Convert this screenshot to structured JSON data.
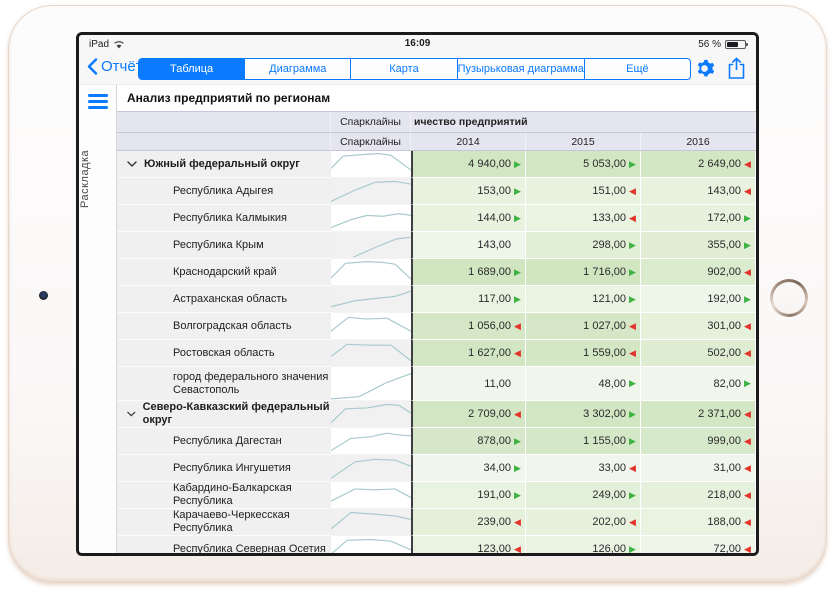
{
  "status_bar": {
    "carrier": "iPad",
    "time": "16:09",
    "battery_percent": "56 %"
  },
  "nav": {
    "back_label": "Отчёты",
    "tabs": [
      {
        "label": "Таблица",
        "selected": true
      },
      {
        "label": "Диаграмма",
        "selected": false
      },
      {
        "label": "Карта",
        "selected": false
      },
      {
        "label": "Пузырьковая диаграмма",
        "selected": false
      },
      {
        "label": "Ещё",
        "selected": false
      }
    ],
    "icons": [
      "settings-gear",
      "share"
    ]
  },
  "sidebar": {
    "layout_label": "Раскладка"
  },
  "report": {
    "title": "Анализ предприятий по регионам"
  },
  "colors": {
    "accent_blue": "#0a7aff",
    "arrow_up_green": "#3fb244",
    "arrow_down_red": "#e2342b",
    "sparkline": "#a9c9ce",
    "header_bg": "#e5e5f0"
  },
  "table": {
    "sparkline_header": "Спарклайны",
    "measure_header": "ичество предприятий",
    "years": [
      "2014",
      "2015",
      "2016"
    ],
    "rows": [
      {
        "name": "Южный федеральный округ",
        "group": true,
        "spark": [
          [
            0,
            20
          ],
          [
            15,
            6
          ],
          [
            40,
            4
          ],
          [
            60,
            3
          ],
          [
            75,
            5
          ],
          [
            100,
            22
          ]
        ],
        "cells": [
          {
            "v": "4 940,00",
            "arrow": "up",
            "bg": "#d2e6c3"
          },
          {
            "v": "5 053,00",
            "arrow": "up",
            "bg": "#d2e6c3"
          },
          {
            "v": "2 649,00",
            "arrow": "down",
            "bg": "#d3e7c5"
          }
        ]
      },
      {
        "name": "Республика Адыгея",
        "spark": [
          [
            0,
            27
          ],
          [
            30,
            14
          ],
          [
            55,
            5
          ],
          [
            80,
            4
          ],
          [
            100,
            7
          ]
        ],
        "cells": [
          {
            "v": "153,00",
            "arrow": "up",
            "bg": "#e8f2df"
          },
          {
            "v": "151,00",
            "arrow": "down",
            "bg": "#e8f2df"
          },
          {
            "v": "143,00",
            "arrow": "down",
            "bg": "#e8f2df"
          }
        ]
      },
      {
        "name": "Республика Калмыкия",
        "spark": [
          [
            0,
            26
          ],
          [
            25,
            17
          ],
          [
            45,
            12
          ],
          [
            65,
            13
          ],
          [
            85,
            10
          ],
          [
            100,
            12
          ]
        ],
        "cells": [
          {
            "v": "144,00",
            "arrow": "up",
            "bg": "#e8f2df"
          },
          {
            "v": "133,00",
            "arrow": "down",
            "bg": "#e9f3e1"
          },
          {
            "v": "172,00",
            "arrow": "up",
            "bg": "#e7f2de"
          }
        ]
      },
      {
        "name": "Республика Крым",
        "spark": [
          [
            28,
            29
          ],
          [
            60,
            16
          ],
          [
            82,
            8
          ],
          [
            100,
            6
          ]
        ],
        "cells": [
          {
            "v": "143,00",
            "arrow": "none",
            "bg": "#eef5e9"
          },
          {
            "v": "298,00",
            "arrow": "up",
            "bg": "#e2efd7"
          },
          {
            "v": "355,00",
            "arrow": "up",
            "bg": "#e1eed5"
          }
        ]
      },
      {
        "name": "Краснодарский край",
        "spark": [
          [
            0,
            22
          ],
          [
            18,
            5
          ],
          [
            45,
            3
          ],
          [
            65,
            4
          ],
          [
            80,
            6
          ],
          [
            100,
            23
          ]
        ],
        "cells": [
          {
            "v": "1 689,00",
            "arrow": "up",
            "bg": "#d0e5c0"
          },
          {
            "v": "1 716,00",
            "arrow": "up",
            "bg": "#d0e5c0"
          },
          {
            "v": "902,00",
            "arrow": "down",
            "bg": "#dbebce"
          }
        ]
      },
      {
        "name": "Астраханская область",
        "spark": [
          [
            0,
            24
          ],
          [
            30,
            17
          ],
          [
            60,
            14
          ],
          [
            80,
            12
          ],
          [
            100,
            6
          ]
        ],
        "cells": [
          {
            "v": "117,00",
            "arrow": "up",
            "bg": "#e9f3e1"
          },
          {
            "v": "121,00",
            "arrow": "up",
            "bg": "#e9f3e1"
          },
          {
            "v": "192,00",
            "arrow": "up",
            "bg": "#eef5e9"
          }
        ]
      },
      {
        "name": "Волгоградская область",
        "spark": [
          [
            0,
            21
          ],
          [
            22,
            5
          ],
          [
            45,
            7
          ],
          [
            70,
            6
          ],
          [
            100,
            21
          ]
        ],
        "cells": [
          {
            "v": "1 056,00",
            "arrow": "down",
            "bg": "#d5e7c7"
          },
          {
            "v": "1 027,00",
            "arrow": "down",
            "bg": "#d5e7c7"
          },
          {
            "v": "301,00",
            "arrow": "down",
            "bg": "#e5f1db"
          }
        ]
      },
      {
        "name": "Ростовская область",
        "spark": [
          [
            0,
            19
          ],
          [
            20,
            5
          ],
          [
            50,
            6
          ],
          [
            75,
            6
          ],
          [
            100,
            24
          ]
        ],
        "cells": [
          {
            "v": "1 627,00",
            "arrow": "down",
            "bg": "#d2e6c3"
          },
          {
            "v": "1 559,00",
            "arrow": "down",
            "bg": "#d3e7c5"
          },
          {
            "v": "502,00",
            "arrow": "down",
            "bg": "#deedd2"
          }
        ]
      },
      {
        "name": "город федерального значения Севастополь",
        "tall": true,
        "spark": [
          [
            0,
            29
          ],
          [
            35,
            27
          ],
          [
            70,
            14
          ],
          [
            100,
            6
          ]
        ],
        "cells": [
          {
            "v": "11,00",
            "arrow": "none",
            "bg": "#f0f6ec"
          },
          {
            "v": "48,00",
            "arrow": "up",
            "bg": "#f0f6ec"
          },
          {
            "v": "82,00",
            "arrow": "up",
            "bg": "#f0f6ec"
          }
        ]
      },
      {
        "name": "Северо-Кавказский федеральный округ",
        "group": true,
        "spark": [
          [
            0,
            25
          ],
          [
            18,
            9
          ],
          [
            45,
            8
          ],
          [
            70,
            4
          ],
          [
            85,
            5
          ],
          [
            100,
            14
          ]
        ],
        "cells": [
          {
            "v": "2 709,00",
            "arrow": "down",
            "bg": "#d2e6c3"
          },
          {
            "v": "3 302,00",
            "arrow": "up",
            "bg": "#d2e6c3"
          },
          {
            "v": "2 371,00",
            "arrow": "down",
            "bg": "#d3e7c5"
          }
        ]
      },
      {
        "name": "Республика Дагестан",
        "spark": [
          [
            0,
            26
          ],
          [
            25,
            12
          ],
          [
            50,
            10
          ],
          [
            70,
            6
          ],
          [
            85,
            8
          ],
          [
            100,
            9
          ]
        ],
        "cells": [
          {
            "v": "878,00",
            "arrow": "up",
            "bg": "#d6e8c9"
          },
          {
            "v": "1 155,00",
            "arrow": "up",
            "bg": "#d4e7c6"
          },
          {
            "v": "999,00",
            "arrow": "down",
            "bg": "#d7e9cb"
          }
        ]
      },
      {
        "name": "Республика Ингушетия",
        "spark": [
          [
            0,
            27
          ],
          [
            30,
            8
          ],
          [
            55,
            5
          ],
          [
            80,
            6
          ],
          [
            100,
            13
          ]
        ],
        "cells": [
          {
            "v": "34,00",
            "arrow": "up",
            "bg": "#f0f6ec"
          },
          {
            "v": "33,00",
            "arrow": "down",
            "bg": "#f0f6ec"
          },
          {
            "v": "31,00",
            "arrow": "down",
            "bg": "#f0f6ec"
          }
        ]
      },
      {
        "name": "Кабардино-Балкарская Республика",
        "spark": [
          [
            0,
            22
          ],
          [
            30,
            8
          ],
          [
            55,
            9
          ],
          [
            80,
            8
          ],
          [
            100,
            18
          ]
        ],
        "cells": [
          {
            "v": "191,00",
            "arrow": "up",
            "bg": "#e9f3e1"
          },
          {
            "v": "249,00",
            "arrow": "up",
            "bg": "#e3f0d9"
          },
          {
            "v": "218,00",
            "arrow": "down",
            "bg": "#e6f1dd"
          }
        ]
      },
      {
        "name": "Карачаево-Черкесская Республика",
        "spark": [
          [
            0,
            23
          ],
          [
            25,
            4
          ],
          [
            55,
            6
          ],
          [
            80,
            8
          ],
          [
            100,
            12
          ]
        ],
        "cells": [
          {
            "v": "239,00",
            "arrow": "down",
            "bg": "#e4f0da"
          },
          {
            "v": "202,00",
            "arrow": "down",
            "bg": "#e7f2de"
          },
          {
            "v": "188,00",
            "arrow": "down",
            "bg": "#e9f3e1"
          }
        ]
      },
      {
        "name": "Республика Северная Осетия",
        "spark": [
          [
            0,
            21
          ],
          [
            20,
            5
          ],
          [
            50,
            4
          ],
          [
            75,
            6
          ],
          [
            100,
            16
          ]
        ],
        "cells": [
          {
            "v": "123,00",
            "arrow": "down",
            "bg": "#eaf3e2"
          },
          {
            "v": "126,00",
            "arrow": "up",
            "bg": "#eaf3e2"
          },
          {
            "v": "72,00",
            "arrow": "down",
            "bg": "#eef5e8"
          }
        ]
      }
    ]
  }
}
